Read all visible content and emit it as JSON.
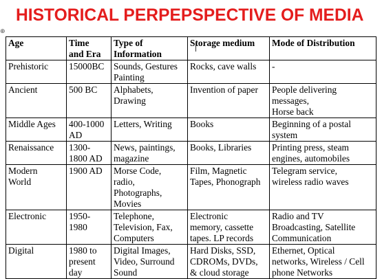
{
  "title": "HISTORICAL PERPEPSPECTIVE OF MEDIA",
  "table_handle_icon": "move-handle",
  "headers": [
    [
      "Age"
    ],
    [
      "Time",
      "and Era"
    ],
    [
      "Type of",
      "Information"
    ],
    [
      "Storage medium"
    ],
    [
      "Mode of Distribution"
    ]
  ],
  "rows": [
    [
      [
        "Prehistoric"
      ],
      [
        "15000BC"
      ],
      [
        "Sounds, Gestures",
        "Painting"
      ],
      [
        "Rocks, cave walls"
      ],
      [
        "-"
      ]
    ],
    [
      [
        "Ancient"
      ],
      [
        "500 BC"
      ],
      [
        "Alphabets,",
        "Drawing"
      ],
      [
        "Invention of paper"
      ],
      [
        "People delivering",
        "messages,",
        "Horse back"
      ]
    ],
    [
      [
        "Middle Ages"
      ],
      [
        "400-1000",
        "AD"
      ],
      [
        "Letters, Writing"
      ],
      [
        "Books"
      ],
      [
        "Beginning of a postal",
        "system"
      ]
    ],
    [
      [
        "Renaissance"
      ],
      [
        "1300-",
        "1800 AD"
      ],
      [
        "News, paintings,",
        "magazine"
      ],
      [
        "Books, Libraries"
      ],
      [
        "Printing press, steam",
        "engines, automobiles"
      ]
    ],
    [
      [
        "Modern",
        "World"
      ],
      [
        "1900 AD"
      ],
      [
        "Morse Code,",
        "radio,",
        "Photographs,",
        "Movies"
      ],
      [
        "Film, Magnetic",
        "Tapes, Phonograph"
      ],
      [
        "Telegram service,",
        "wireless radio waves"
      ]
    ],
    [
      [
        "Electronic"
      ],
      [
        "1950-",
        "1980"
      ],
      [
        "Telephone,",
        "Television, Fax,",
        "Computers"
      ],
      [
        "Electronic",
        "memory, cassette",
        "tapes. LP records"
      ],
      [
        "Radio and TV",
        "Broadcasting, Satellite",
        "Communication"
      ]
    ],
    [
      [
        "Digital"
      ],
      [
        "1980 to",
        "present",
        "day"
      ],
      [
        "Digital Images,",
        "Video, Surround",
        "Sound"
      ],
      [
        "Hard Disks, SSD,",
        "CDROMs, DVDs,",
        "& cloud storage"
      ],
      [
        "Ethernet, Optical",
        "networks, Wireless / Cell",
        "phone Networks"
      ]
    ]
  ]
}
